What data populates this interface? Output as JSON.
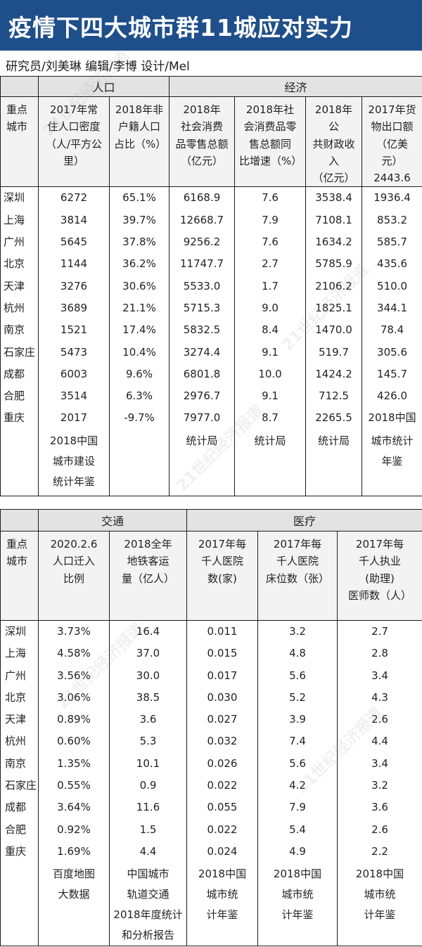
{
  "header": {
    "title": "疫情下四大城市群11城应对实力",
    "credits": "研究员/刘美琳   编辑/李博   设计/Mel",
    "watermark": "21世纪经济报道"
  },
  "table1": {
    "groups": {
      "population": "人口",
      "economy": "经济"
    },
    "headers": [
      "重点\n城市",
      "2017年常\n住人口密度\n（人/平方公里）",
      "2018年非\n户籍人口\n占比（%）",
      "2018年\n社会消费\n品零售总额\n（亿元）",
      "2018年社\n会消费品零\n售总额同\n比增速（%）",
      "2018年公\n共财政收入\n（亿元）",
      "2017年货\n物出口额\n（亿美元）\n2443.6"
    ],
    "columns": [
      [
        "深圳",
        "上海",
        "广州",
        "北京",
        "天津",
        "杭州",
        "南京",
        "石家庄",
        "成都",
        "合肥",
        "重庆"
      ],
      [
        "6272",
        "3814",
        "5645",
        "1144",
        "3276",
        "3689",
        "1521",
        "5473",
        "6003",
        "3514",
        "2017"
      ],
      [
        "65.1%",
        "39.7%",
        "37.8%",
        "36.2%",
        "30.6%",
        "21.1%",
        "17.4%",
        "10.4%",
        "9.6%",
        "6.3%",
        "-9.7%"
      ],
      [
        "6168.9",
        "12668.7",
        "9256.2",
        "11747.7",
        "5533.0",
        "5715.3",
        "5832.5",
        "3274.4",
        "6801.8",
        "2976.7",
        "7977.0"
      ],
      [
        "7.6",
        "7.9",
        "7.6",
        "2.7",
        "1.7",
        "9.0",
        "8.4",
        "9.1",
        "10.0",
        "9.1",
        "8.7"
      ],
      [
        "3538.4",
        "7108.1",
        "1634.2",
        "5785.9",
        "2106.2",
        "1825.1",
        "1470.0",
        "519.7",
        "1424.2",
        "712.5",
        "2265.5"
      ],
      [
        "1936.4",
        "853.2",
        "585.7",
        "435.6",
        "510.0",
        "344.1",
        "78.4",
        "305.6",
        "145.7",
        "426.0",
        "2018中国"
      ]
    ],
    "sources": [
      "",
      "2018中国\n城市建设\n统计年鉴",
      "",
      "统计局",
      "统计局",
      "统计局",
      "城市统计\n年鉴"
    ]
  },
  "table2": {
    "groups": {
      "transport": "交通",
      "medical": "医疗"
    },
    "headers": [
      "重点\n城市",
      "2020.2.6\n人口迁入\n比例",
      "2018全年\n地铁客运\n量（亿人）",
      "2017年每\n千人医院\n数(家)",
      "2017年每\n千人医院\n床位数（张）",
      "2017年每\n千人执业\n(助理)\n医师数（人）"
    ],
    "columns": [
      [
        "深圳",
        "上海",
        "广州",
        "北京",
        "天津",
        "杭州",
        "南京",
        "石家庄",
        "成都",
        "合肥",
        "重庆"
      ],
      [
        "3.73%",
        "4.58%",
        "3.56%",
        "3.06%",
        "0.89%",
        "0.60%",
        "1.35%",
        "0.55%",
        "3.64%",
        "0.92%",
        "1.69%"
      ],
      [
        "16.4",
        "37.0",
        "30.0",
        "38.5",
        "3.6",
        "5.3",
        "10.1",
        "0.9",
        "11.6",
        "1.5",
        "4.4"
      ],
      [
        "0.011",
        "0.015",
        "0.017",
        "0.030",
        "0.027",
        "0.032",
        "0.026",
        "0.022",
        "0.055",
        "0.022",
        "0.024"
      ],
      [
        "3.2",
        "4.8",
        "5.6",
        "5.2",
        "3.9",
        "7.4",
        "5.6",
        "4.2",
        "7.9",
        "5.4",
        "4.9"
      ],
      [
        "2.7",
        "2.8",
        "3.4",
        "4.3",
        "2.6",
        "4.4",
        "3.4",
        "3.2",
        "3.6",
        "2.6",
        "2.2"
      ]
    ],
    "sources": [
      "",
      "百度地图\n大数据",
      "中国城市\n轨道交通\n2018年度统计\n和分析报告",
      "2018中国\n城市统\n计年鉴",
      "2018中国\n城市统\n计年鉴",
      "2018中国\n城市统\n计年鉴"
    ]
  }
}
